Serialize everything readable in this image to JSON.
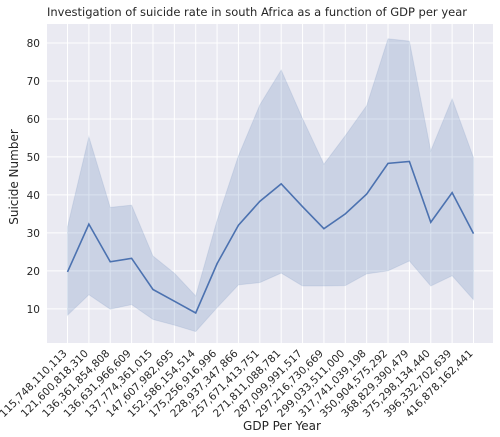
{
  "chart_data": {
    "type": "line",
    "title": "Investigation of suicide rate in south Africa as a function of GDP per year",
    "xlabel": "GDP Per Year",
    "ylabel": "Suicide Number",
    "categories": [
      "115,748,110,113",
      "121,600,818,310",
      "136,361,854,808",
      "136,631,966,609",
      "137,774,361,015",
      "147,607,982,695",
      "152,586,154,514",
      "175,256,916,996",
      "228,937,347,866",
      "257,671,413,751",
      "271,811,088,781",
      "287,099,991,517",
      "297,216,730,669",
      "299,033,511,000",
      "317,741,039,198",
      "350,904,575,292",
      "368,829,390,479",
      "375,298,134,440",
      "396,332,702,639",
      "416,878,162,441"
    ],
    "series": [
      {
        "values": [
          19.7,
          32.3,
          22.4,
          23.3,
          15.1,
          12.0,
          8.9,
          21.9,
          32.0,
          38.3,
          42.9,
          36.9,
          31.1,
          35.0,
          40.2,
          48.3,
          48.8,
          32.8,
          40.6,
          29.8
        ],
        "ci_upper": [
          31.6,
          55.3,
          36.7,
          37.3,
          23.9,
          19.4,
          13.4,
          33.3,
          50.3,
          63.7,
          72.9,
          60.1,
          48.1,
          55.6,
          63.5,
          81.1,
          80.5,
          51.6,
          65.3,
          49.8
        ],
        "ci_lower": [
          8.3,
          13.7,
          9.9,
          11.1,
          7.2,
          5.7,
          4.0,
          10.3,
          16.3,
          16.9,
          19.4,
          16.0,
          16.0,
          16.1,
          19.2,
          20.0,
          22.6,
          16.0,
          18.7,
          12.4
        ]
      }
    ],
    "yticks": [
      "10",
      "20",
      "30",
      "40",
      "50",
      "60",
      "70",
      "80"
    ],
    "ylim": [
      1,
      85
    ],
    "grid": true,
    "colors": {
      "background": "#EAEAF2",
      "grid": "#FFFFFF",
      "line": "#4C72B0",
      "band": "#4C72B0"
    }
  }
}
